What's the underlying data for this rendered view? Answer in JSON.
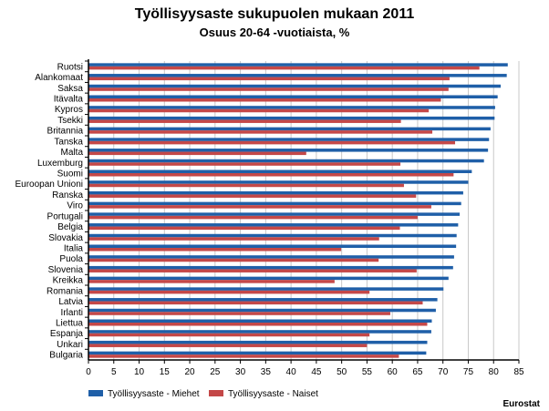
{
  "chart_data": {
    "type": "bar",
    "orientation": "horizontal",
    "title": "Työllisyysaste sukupuolen mukaan 2011",
    "subtitle": "Osuus 20-64 -vuotiaista, %",
    "source": "Eurostat",
    "categories": [
      "Ruotsi",
      "Alankomaat",
      "Saksa",
      "Itävalta",
      "Kypros",
      "Tsekki",
      "Britannia",
      "Tanska",
      "Malta",
      "Luxemburg",
      "Suomi",
      "Euroopan Unioni",
      "Ranska",
      "Viro",
      "Portugali",
      "Belgia",
      "Slovakia",
      "Italia",
      "Puola",
      "Slovenia",
      "Kreikka",
      "Romania",
      "Latvia",
      "Irlanti",
      "Liettua",
      "Espanja",
      "Unkari",
      "Bulgaria"
    ],
    "series": [
      {
        "name": "Työllisyysaste - Miehet",
        "color": "#1f5fa8",
        "values": [
          82.8,
          82.6,
          81.4,
          80.8,
          80.3,
          80.2,
          79.4,
          79.1,
          78.9,
          78.1,
          75.7,
          75.0,
          74.0,
          73.6,
          73.3,
          73.0,
          72.7,
          72.6,
          72.2,
          72.0,
          71.1,
          70.1,
          68.9,
          68.6,
          67.8,
          67.7,
          66.9,
          66.7
        ]
      },
      {
        "name": "Työllisyysaste - Naiset",
        "color": "#c44848",
        "values": [
          77.2,
          71.3,
          71.1,
          69.6,
          67.2,
          61.7,
          67.9,
          72.4,
          43.0,
          61.6,
          72.1,
          62.3,
          64.7,
          67.7,
          65.0,
          61.5,
          57.4,
          49.9,
          57.3,
          64.8,
          48.6,
          55.5,
          66.0,
          59.6,
          66.9,
          55.5,
          55.0,
          61.3
        ]
      }
    ],
    "x_ticks": [
      0,
      5,
      10,
      15,
      20,
      25,
      30,
      35,
      40,
      45,
      50,
      55,
      60,
      65,
      70,
      75,
      80,
      85
    ],
    "xlim": [
      0,
      85
    ],
    "grid": true,
    "legend_position": "bottom-left"
  }
}
